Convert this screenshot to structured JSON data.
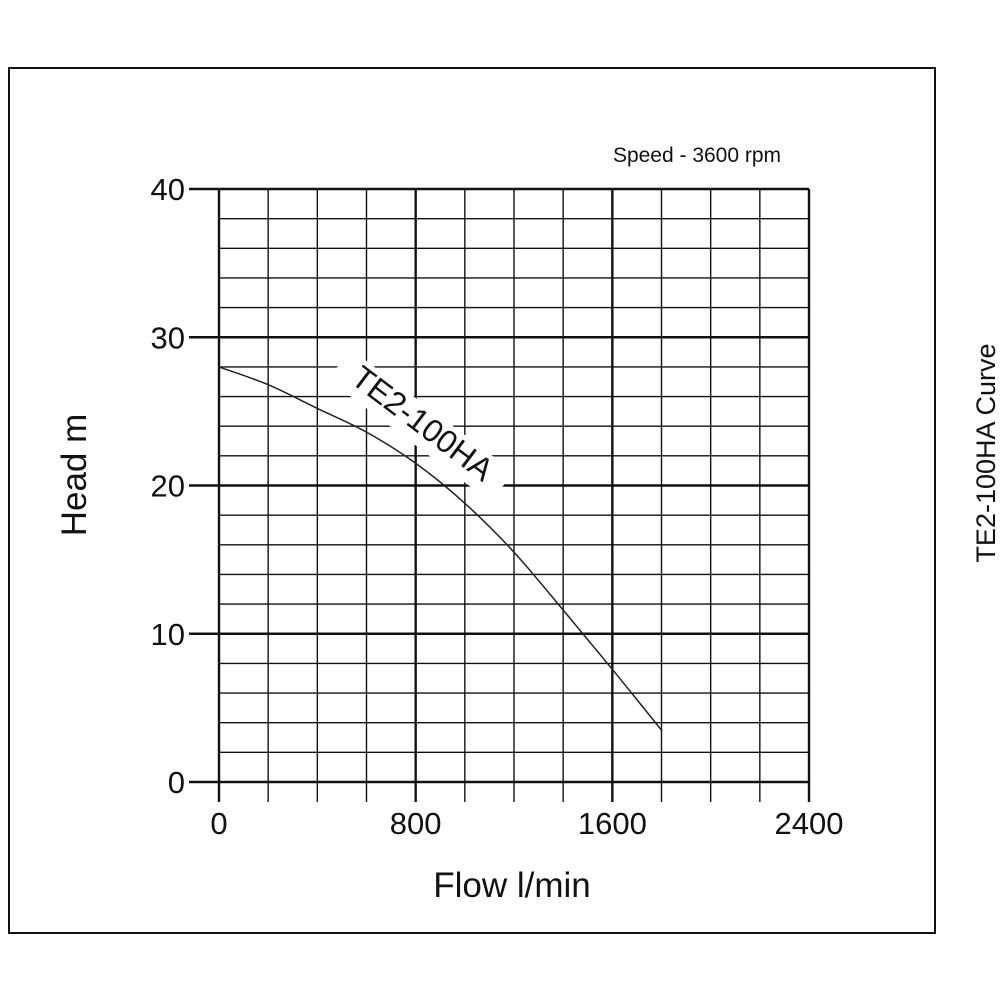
{
  "chart_data": {
    "type": "line",
    "title": "",
    "speed_note": "Speed - 3600 rpm",
    "side_caption": "TE2-100HA Curve",
    "xlabel": "Flow l/min",
    "ylabel": "Head m",
    "xlim": [
      0,
      2400
    ],
    "ylim": [
      0,
      40
    ],
    "x_ticks": [
      0,
      800,
      1600,
      2400
    ],
    "y_ticks": [
      0,
      10,
      20,
      30,
      40
    ],
    "grid": true,
    "x_minor_step": 200,
    "y_minor_step": 2,
    "series": [
      {
        "name": "TE2-100HA",
        "x": [
          0,
          200,
          400,
          600,
          800,
          1000,
          1200,
          1400,
          1600,
          1800
        ],
        "y": [
          28.0,
          26.8,
          25.2,
          23.6,
          21.5,
          18.8,
          15.5,
          11.6,
          7.6,
          3.5
        ]
      }
    ]
  }
}
